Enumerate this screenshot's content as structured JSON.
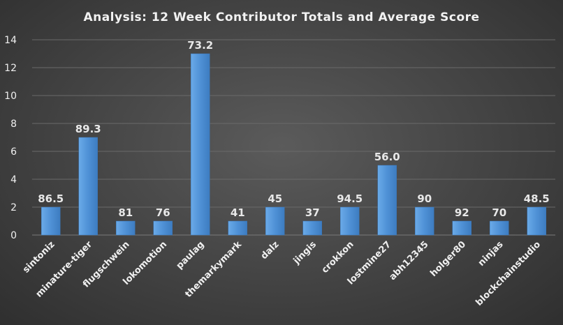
{
  "chart_data": {
    "type": "bar",
    "title": "Analysis:  12 Week Contributor Totals and Average Score",
    "xlabel": "",
    "ylabel": "",
    "ylim": [
      0,
      14
    ],
    "yticks": [
      0,
      2,
      4,
      6,
      8,
      10,
      12,
      14
    ],
    "grid": true,
    "legend": "none",
    "bar_color": "#4f91d6",
    "categories": [
      "sintoniz",
      "minature-tiger",
      "flugschwein",
      "lokomotion",
      "paulag",
      "themarkymark",
      "dalz",
      "jingis",
      "crokkon",
      "lostmine27",
      "abh12345",
      "holger80",
      "ninjas",
      "blockchainstudio"
    ],
    "values": [
      2,
      7,
      1,
      1,
      13,
      1,
      2,
      1,
      2,
      5,
      2,
      1,
      1,
      2
    ],
    "data_labels": [
      "86.5",
      "89.3",
      "81",
      "76",
      "73.2",
      "41",
      "45",
      "37",
      "94.5",
      "56.0",
      "90",
      "92",
      "70",
      "48.5"
    ]
  }
}
